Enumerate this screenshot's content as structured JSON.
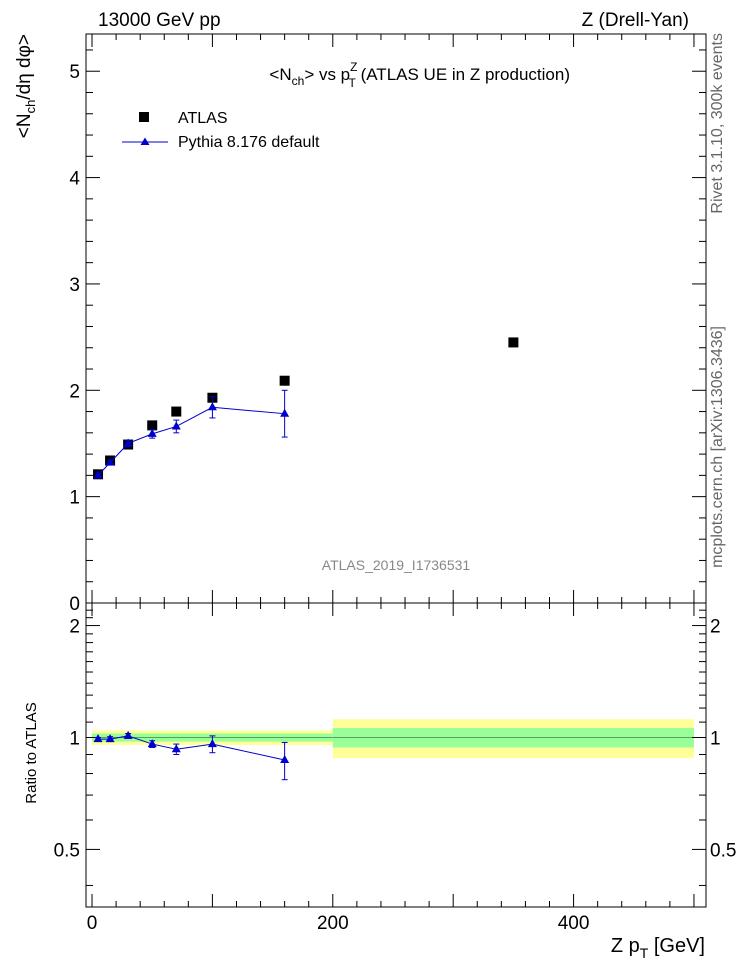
{
  "header": {
    "left": "13000 GeV pp",
    "right": "Z (Drell-Yan)"
  },
  "side_labels": {
    "rivet": "Rivet 3.1.10,  300k events",
    "mcplots": "mcplots.cern.ch [arXiv:1306.3436]"
  },
  "chart_data": {
    "type": "scatter",
    "title": {
      "part1": "<N",
      "part1_sub": "ch",
      "part2": "> vs p",
      "part2_sup": "Z",
      "part2_sub": "T",
      "part3": " (ATLAS UE in Z production)"
    },
    "ylabel": {
      "part1": "<N",
      "sub": "ch",
      "part2": "/dη dφ>"
    },
    "xlabel": {
      "part1": "Z p",
      "sub": "T",
      "part2": " [GeV]"
    },
    "ratio_ylabel": "Ratio to ATLAS",
    "watermark": "ATLAS_2019_I1736531",
    "xlim": [
      -5,
      510
    ],
    "ylim": [
      0,
      5.35
    ],
    "ratio_ylim": [
      0.35,
      2.3
    ],
    "x_ticks": [
      "0",
      "200",
      "400"
    ],
    "x_tick_values": [
      0,
      200,
      400
    ],
    "y_ticks": [
      "0",
      "1",
      "2",
      "3",
      "4",
      "5"
    ],
    "y_tick_values": [
      0,
      1,
      2,
      3,
      4,
      5
    ],
    "ratio_ticks": [
      "0.5",
      "1",
      "2"
    ],
    "ratio_tick_values": [
      0.5,
      1,
      2
    ],
    "legend": {
      "atlas": "ATLAS",
      "pythia": "Pythia 8.176 default",
      "position": "top-left"
    },
    "series": [
      {
        "name": "ATLAS",
        "x": [
          5,
          15,
          30,
          50,
          70,
          100,
          160,
          350
        ],
        "y": [
          1.21,
          1.34,
          1.49,
          1.67,
          1.8,
          1.93,
          2.09,
          2.45
        ]
      },
      {
        "name": "Pythia 8.176 default",
        "x": [
          5,
          15,
          30,
          50,
          70,
          100,
          160
        ],
        "y": [
          1.2,
          1.32,
          1.5,
          1.59,
          1.66,
          1.84,
          1.78
        ],
        "yerr": [
          0.02,
          0.02,
          0.03,
          0.04,
          0.06,
          0.1,
          0.22
        ]
      }
    ],
    "ratio": {
      "x": [
        5,
        15,
        30,
        50,
        70,
        100,
        160
      ],
      "y": [
        0.99,
        0.99,
        1.01,
        0.96,
        0.93,
        0.96,
        0.87
      ],
      "yerr": [
        0.01,
        0.015,
        0.015,
        0.02,
        0.03,
        0.05,
        0.1
      ],
      "bands": [
        {
          "x0": 0,
          "x1": 200,
          "inner": 0.025,
          "outer": 0.045
        },
        {
          "x0": 200,
          "x1": 500,
          "inner": 0.06,
          "outer": 0.12
        }
      ]
    },
    "colors": {
      "data": "#000000",
      "mc": "#0000cc",
      "band_inner": "#99ff99",
      "band_outer": "#ffff99",
      "watermark": "#888888",
      "side": "#666666"
    }
  }
}
